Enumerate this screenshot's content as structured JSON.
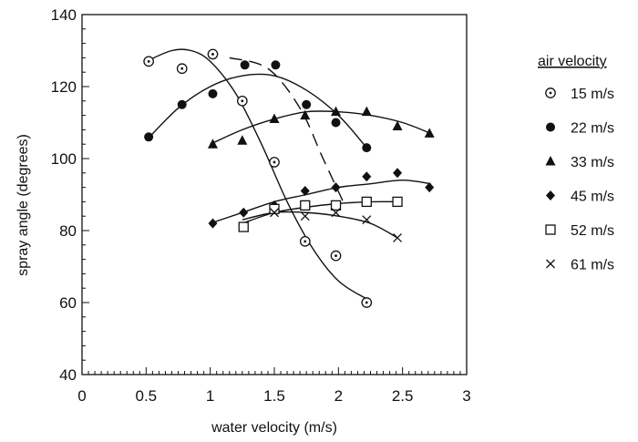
{
  "chart_data": {
    "type": "scatter",
    "title": "",
    "xlabel": "water velocity (m/s)",
    "ylabel": "spray angle (degrees)",
    "xlim": [
      0,
      3
    ],
    "ylim": [
      40,
      140
    ],
    "xticks": [
      "0",
      "0.5",
      "1",
      "1.5",
      "2",
      "2.5",
      "3"
    ],
    "yticks": [
      "40",
      "60",
      "80",
      "100",
      "120",
      "140"
    ],
    "grid": false,
    "legend": {
      "title": "air velocity",
      "placement": "right, outside plot"
    },
    "series": [
      {
        "name": "15 m/s",
        "marker": "circle-dot",
        "x": [
          0.52,
          0.78,
          1.02,
          1.25,
          1.5,
          1.74,
          1.98,
          2.22
        ],
        "y": [
          127,
          125,
          129,
          116,
          99,
          77,
          73,
          60
        ],
        "curve_x": [
          0.5,
          0.7,
          0.85,
          1.0,
          1.2,
          1.4,
          1.6,
          1.8,
          2.0,
          2.22
        ],
        "curve_y": [
          127,
          130,
          130,
          127,
          118,
          104,
          88,
          75,
          66,
          61
        ]
      },
      {
        "name": "22 m/s",
        "marker": "filled-circle",
        "x": [
          0.52,
          0.78,
          1.02,
          1.27,
          1.51,
          1.75,
          1.98,
          2.22
        ],
        "y": [
          106,
          115,
          118,
          126,
          126,
          115,
          110,
          103
        ],
        "curve_x": [
          0.5,
          0.75,
          1.0,
          1.25,
          1.5,
          1.75,
          2.0,
          2.22
        ],
        "curve_y": [
          105,
          114,
          120,
          123,
          123,
          119,
          112,
          103
        ]
      },
      {
        "name": "33 m/s",
        "marker": "filled-triangle",
        "x": [
          1.02,
          1.25,
          1.5,
          1.74,
          1.98,
          2.22,
          2.46,
          2.71
        ],
        "y": [
          104,
          105,
          111,
          112,
          113,
          113,
          109,
          107
        ],
        "curve_x": [
          1.0,
          1.25,
          1.5,
          1.75,
          2.0,
          2.25,
          2.5,
          2.72
        ],
        "curve_y": [
          104,
          108,
          111,
          113,
          113,
          112,
          110,
          107
        ]
      },
      {
        "name": "45 m/s",
        "marker": "filled-diamond",
        "x": [
          1.02,
          1.26,
          1.5,
          1.74,
          1.98,
          2.22,
          2.46,
          2.71
        ],
        "y": [
          82,
          85,
          87,
          91,
          92,
          95,
          96,
          92
        ],
        "curve_x": [
          1.0,
          1.25,
          1.5,
          1.75,
          2.0,
          2.25,
          2.5,
          2.72
        ],
        "curve_y": [
          82,
          85,
          88,
          90,
          92,
          93,
          94,
          93
        ]
      },
      {
        "name": "52 m/s",
        "marker": "open-square",
        "x": [
          1.26,
          1.5,
          1.74,
          1.98,
          2.22,
          2.46
        ],
        "y": [
          81,
          86,
          87,
          87,
          88,
          88
        ],
        "curve_x": [
          1.25,
          1.5,
          1.75,
          2.0,
          2.25,
          2.48
        ],
        "curve_y": [
          82,
          85,
          86.5,
          87.5,
          88,
          88
        ]
      },
      {
        "name": "61 m/s",
        "marker": "x",
        "x": [
          1.5,
          1.74,
          1.98,
          2.22,
          2.46
        ],
        "y": [
          85,
          84,
          85,
          83,
          78
        ],
        "curve_x": [
          1.25,
          1.5,
          1.75,
          2.0,
          2.25,
          2.46
        ],
        "curve_y": [
          83,
          85,
          85,
          84,
          82,
          78
        ]
      }
    ],
    "dashed_line": {
      "x": [
        1.15,
        1.45,
        1.7,
        1.88,
        2.05
      ],
      "y": [
        128,
        125,
        114,
        100,
        87
      ]
    }
  }
}
